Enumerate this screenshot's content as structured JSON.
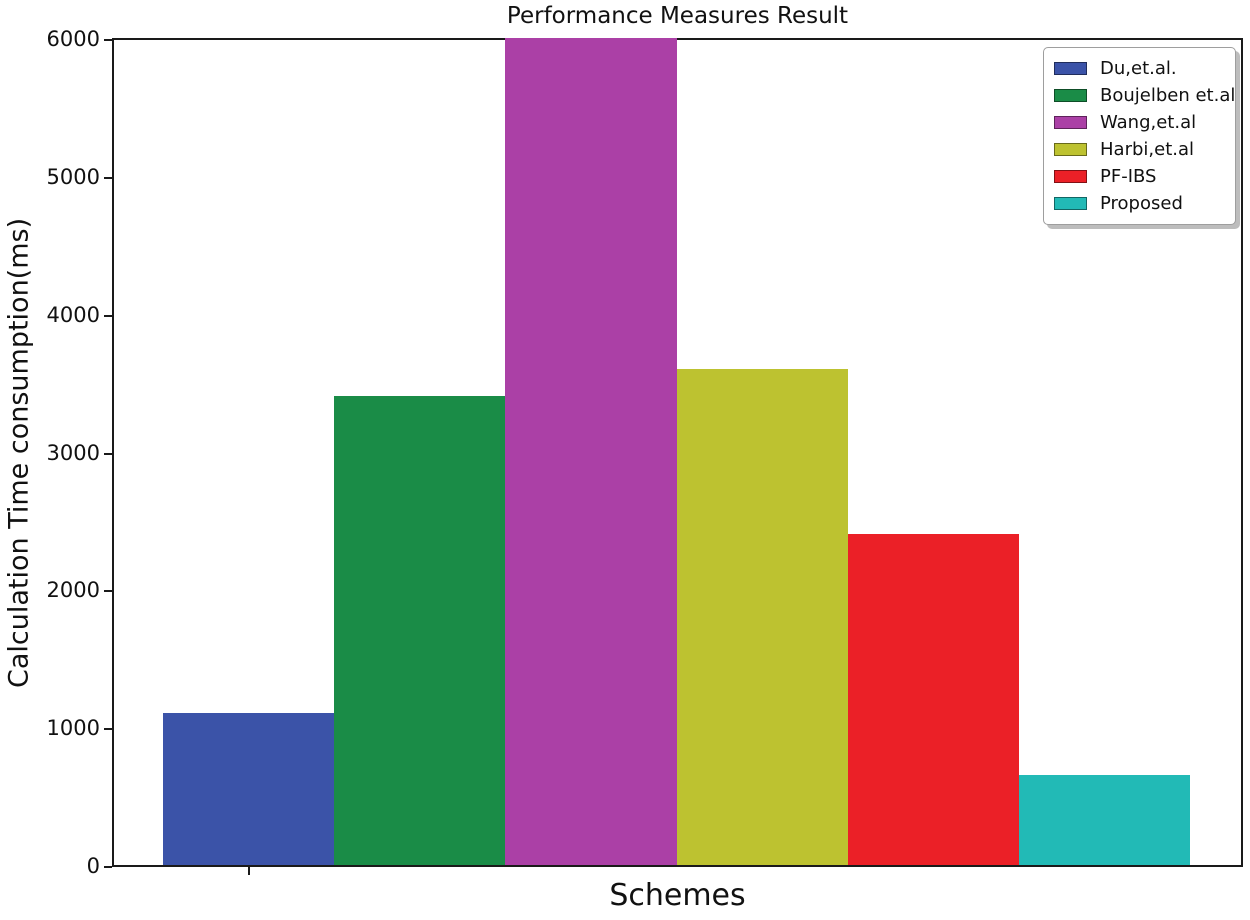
{
  "chart_data": {
    "type": "bar",
    "title": "Performance Measures Result",
    "xlabel": "Schemes",
    "ylabel": "Calculation Time consumption(ms)",
    "ylim": [
      0,
      6000
    ],
    "yticks": [
      0,
      1000,
      2000,
      3000,
      4000,
      5000,
      6000
    ],
    "x_tick_labels": [
      ""
    ],
    "grid": false,
    "legend_position": "upper right",
    "background": "#ffffff",
    "axis_color": "#1a1a1a",
    "note": "Wang,et.al bar is clipped at the 6000 axis maximum (true value not visible)",
    "series": [
      {
        "name": "Du,et.al.",
        "value": 1100,
        "color": "#3b53a8"
      },
      {
        "name": "Boujelben et.al",
        "value": 3400,
        "color": "#1a8c47"
      },
      {
        "name": "Wang,et.al",
        "value": 6000,
        "clipped": true,
        "color": "#ab40a6"
      },
      {
        "name": "Harbi,et.al",
        "value": 3600,
        "color": "#bdc230"
      },
      {
        "name": "PF-IBS",
        "value": 2400,
        "color": "#eb2027"
      },
      {
        "name": "Proposed",
        "value": 650,
        "color": "#22bab6"
      }
    ]
  }
}
